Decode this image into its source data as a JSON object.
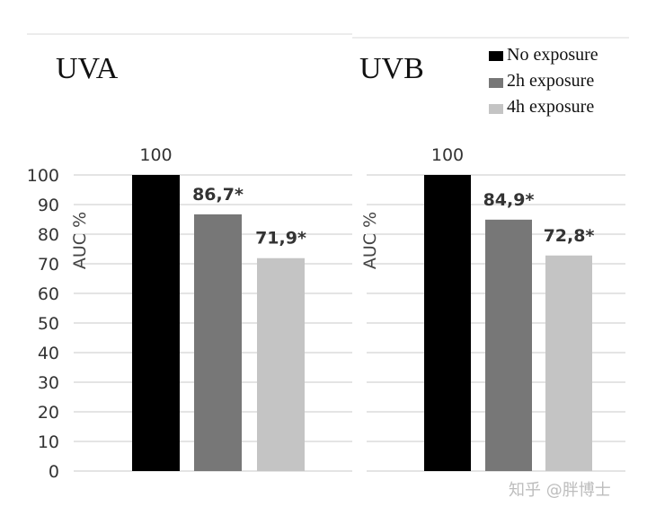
{
  "legend": {
    "placement": "top-right",
    "items": [
      {
        "label": "No exposure",
        "color": "#000000"
      },
      {
        "label": "2h exposure",
        "color": "#777777"
      },
      {
        "label": "4h exposure",
        "color": "#c4c4c4"
      }
    ]
  },
  "watermark": "知乎 @胖博士",
  "chart_data": [
    {
      "type": "bar",
      "title": "UVA",
      "ylabel": "AUC %",
      "ylim": [
        0,
        100
      ],
      "yticks": [
        0,
        10,
        20,
        30,
        40,
        50,
        60,
        70,
        80,
        90,
        100
      ],
      "grid": true,
      "series": [
        {
          "name": "No exposure",
          "value": 100,
          "label": "100",
          "color": "#000000"
        },
        {
          "name": "2h exposure",
          "value": 86.7,
          "label": "86,7*",
          "color": "#777777"
        },
        {
          "name": "4h exposure",
          "value": 71.9,
          "label": "71,9*",
          "color": "#c4c4c4"
        }
      ]
    },
    {
      "type": "bar",
      "title": "UVB",
      "ylabel": "AUC %",
      "ylim": [
        0,
        100
      ],
      "yticks": [],
      "grid": true,
      "series": [
        {
          "name": "No exposure",
          "value": 100,
          "label": "100",
          "color": "#000000"
        },
        {
          "name": "2h exposure",
          "value": 84.9,
          "label": "84,9*",
          "color": "#777777"
        },
        {
          "name": "4h exposure",
          "value": 72.8,
          "label": "72,8*",
          "color": "#c4c4c4"
        }
      ]
    }
  ]
}
